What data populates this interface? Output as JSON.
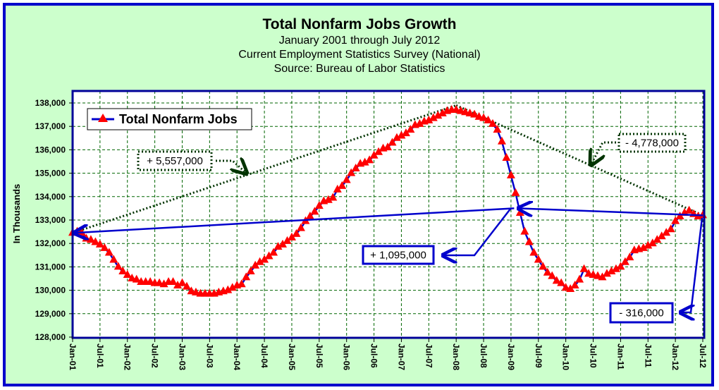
{
  "chart_data": {
    "type": "line",
    "title": "Total Nonfarm Jobs Growth",
    "subtitles": [
      "January 2001 through July 2012",
      "Current Employment Statistics Survey (National)",
      "Source: Bureau of Labor Statistics"
    ],
    "ylabel": "In Thousands",
    "xlabel": "",
    "ylim": [
      128000,
      138000
    ],
    "ytick_values": [
      128000,
      129000,
      130000,
      131000,
      132000,
      133000,
      134000,
      135000,
      136000,
      137000,
      138000
    ],
    "ytick_labels": [
      "128,000",
      "129,000",
      "130,000",
      "131,000",
      "132,000",
      "133,000",
      "134,000",
      "135,000",
      "136,000",
      "137,000",
      "138,000"
    ],
    "xtick_labels": [
      "Jan-01",
      "Jul-01",
      "Jan-02",
      "Jul-02",
      "Jan-03",
      "Jul-03",
      "Jan-04",
      "Jul-04",
      "Jan-05",
      "Jul-05",
      "Jan-06",
      "Jul-06",
      "Jan-07",
      "Jul-07",
      "Jan-08",
      "Jul-08",
      "Jan-09",
      "Jul-09",
      "Jan-10",
      "Jul-10",
      "Jan-11",
      "Jul-11",
      "Jan-12",
      "Jul-12"
    ],
    "x_start": "Jan-01",
    "x_unit": "month",
    "grid": true,
    "legend_position": "top-left",
    "series": [
      {
        "name": "Total Nonfarm Jobs",
        "line_color": "#0000cc",
        "marker_color": "#ff0000",
        "marker": "triangle",
        "values": [
          132450,
          132500,
          132450,
          132200,
          132150,
          132050,
          131950,
          131800,
          131600,
          131300,
          131000,
          130800,
          130650,
          130500,
          130450,
          130350,
          130350,
          130350,
          130300,
          130300,
          130250,
          130350,
          130350,
          130200,
          130300,
          130150,
          129950,
          129900,
          129850,
          129850,
          129850,
          129850,
          129900,
          129950,
          130000,
          130100,
          130200,
          130250,
          130550,
          130800,
          131050,
          131200,
          131300,
          131450,
          131600,
          131850,
          131950,
          132100,
          132250,
          132400,
          132650,
          132950,
          133150,
          133350,
          133600,
          133800,
          133850,
          133950,
          134300,
          134450,
          134700,
          135000,
          135200,
          135400,
          135450,
          135550,
          135750,
          135900,
          136050,
          136100,
          136300,
          136500,
          136600,
          136700,
          136850,
          137050,
          137100,
          137200,
          137250,
          137350,
          137450,
          137550,
          137650,
          137700,
          137700,
          137650,
          137600,
          137550,
          137500,
          137400,
          137350,
          137250,
          137100,
          136850,
          136350,
          135650,
          134900,
          134150,
          133300,
          132500,
          132050,
          131600,
          131300,
          131000,
          130750,
          130600,
          130400,
          130300,
          130100,
          130050,
          130200,
          130450,
          130900,
          130700,
          130650,
          130600,
          130550,
          130700,
          130800,
          130900,
          131000,
          131200,
          131400,
          131700,
          131750,
          131800,
          131900,
          132000,
          132150,
          132300,
          132450,
          132600,
          132950,
          133150,
          133300,
          133400,
          133250,
          133150,
          133200
        ]
      }
    ],
    "annotations": [
      {
        "label": "+ 5,557,000",
        "style": "dotted-dark-green",
        "from": "Jan-01",
        "to": "Jan-08"
      },
      {
        "label": "- 4,778,000",
        "style": "dotted-dark-green",
        "from": "Jan-08",
        "to": "Jul-12"
      },
      {
        "label": "+ 1,095,000",
        "style": "solid-blue",
        "from": "Jan-01",
        "to": "Feb-09"
      },
      {
        "label": "- 316,000",
        "style": "solid-blue",
        "from": "Feb-09",
        "to": "Jul-12"
      }
    ]
  },
  "colors": {
    "page_background": "#ccffcc",
    "frame_border": "#0000cc",
    "plot_border": "#000099",
    "grid": "#006600",
    "series_line": "#0000cc",
    "marker": "#ff0000",
    "trend_dotted": "#003300"
  }
}
